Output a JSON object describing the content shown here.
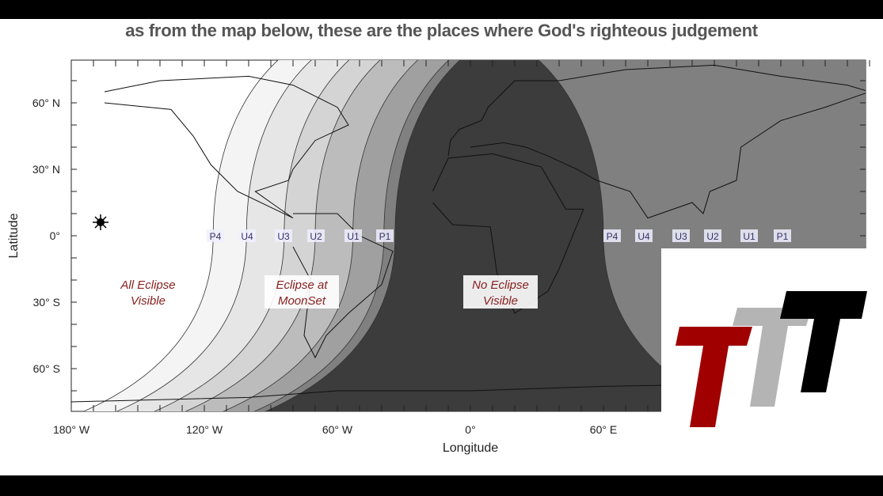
{
  "caption": "as from the map below, these are the places where God's righteous judgement",
  "map": {
    "x_ticks": [
      "180° W",
      "120° W",
      "60° W",
      "0°",
      "60° E"
    ],
    "y_ticks": [
      "60° N",
      "30° N",
      "0°",
      "30° S",
      "60° S"
    ],
    "xlabel": "Longitude",
    "ylabel": "Latitude",
    "west_contacts": [
      "P4",
      "U4",
      "U3",
      "U2",
      "U1",
      "P1"
    ],
    "east_contacts": [
      "P4",
      "U4",
      "U3",
      "U2",
      "U1",
      "P1"
    ],
    "zones": {
      "all": [
        "All Eclipse",
        "Visible"
      ],
      "moonset": [
        "Eclipse at",
        "MoonSet"
      ],
      "none": [
        "No Eclipse",
        "Visible"
      ]
    },
    "band_colors": [
      "#f4f4f4",
      "#e6e6e6",
      "#d4d4d4",
      "#bcbcbc",
      "#a0a0a0",
      "#808080",
      "#3c3c3c"
    ]
  },
  "logo": {
    "colors": [
      "#a00000",
      "#b4b4b4",
      "#000000"
    ],
    "text": "TTT"
  }
}
